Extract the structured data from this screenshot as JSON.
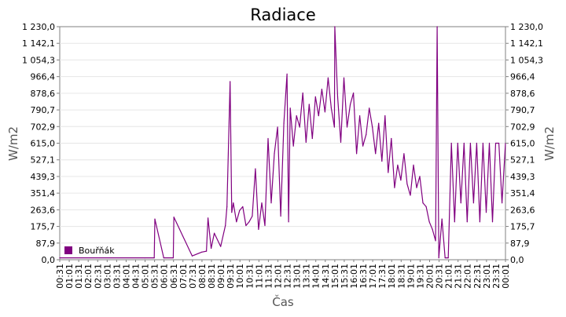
{
  "chart_data": {
    "type": "line",
    "title": "Radiace",
    "xlabel": "Čas",
    "ylabel": "W/m2",
    "ylabel_right": "W/m2",
    "ylim": [
      0,
      1230
    ],
    "yticks": [
      "0,0",
      "87,9",
      "175,7",
      "263,6",
      "351,4",
      "439,3",
      "527,1",
      "615,0",
      "702,9",
      "790,7",
      "878,6",
      "966,4",
      "1 054,3",
      "1 142,1",
      "1 230,0"
    ],
    "xticks": [
      "00:31",
      "01:01",
      "01:31",
      "02:01",
      "02:31",
      "03:01",
      "03:31",
      "04:01",
      "04:31",
      "05:01",
      "05:31",
      "06:01",
      "06:31",
      "07:01",
      "07:31",
      "08:01",
      "08:31",
      "09:01",
      "09:31",
      "10:01",
      "10:31",
      "11:01",
      "11:31",
      "12:01",
      "12:31",
      "13:01",
      "13:31",
      "14:01",
      "14:31",
      "15:01",
      "15:31",
      "16:01",
      "16:31",
      "17:01",
      "17:31",
      "18:01",
      "18:31",
      "19:01",
      "19:31",
      "20:01",
      "20:31",
      "21:01",
      "21:31",
      "22:01",
      "22:31",
      "23:01",
      "23:31",
      "00:01"
    ],
    "grid": true,
    "legend_position": "bottom-left",
    "series": [
      {
        "name": "Bouřňák",
        "color": "#800080",
        "x": [
          "00:31",
          "05:00",
          "05:30",
          "05:32",
          "06:00",
          "06:30",
          "06:32",
          "07:30",
          "08:00",
          "08:15",
          "08:20",
          "08:30",
          "08:40",
          "09:00",
          "09:15",
          "09:20",
          "09:30",
          "09:35",
          "09:40",
          "09:50",
          "10:00",
          "10:10",
          "10:20",
          "10:30",
          "10:40",
          "10:50",
          "11:00",
          "11:10",
          "11:20",
          "11:30",
          "11:40",
          "11:50",
          "12:00",
          "12:10",
          "12:20",
          "12:30",
          "12:35",
          "12:40",
          "12:50",
          "13:00",
          "13:10",
          "13:20",
          "13:30",
          "13:40",
          "13:50",
          "14:00",
          "14:10",
          "14:20",
          "14:30",
          "14:40",
          "14:50",
          "15:00",
          "15:01",
          "15:10",
          "15:20",
          "15:30",
          "15:40",
          "15:50",
          "16:00",
          "16:10",
          "16:20",
          "16:30",
          "16:40",
          "16:50",
          "17:00",
          "17:10",
          "17:20",
          "17:30",
          "17:40",
          "17:50",
          "18:00",
          "18:10",
          "18:20",
          "18:30",
          "18:40",
          "18:50",
          "19:00",
          "19:10",
          "19:20",
          "19:30",
          "19:40",
          "19:50",
          "20:00",
          "20:10",
          "20:20",
          "20:25",
          "20:30",
          "20:40",
          "20:50",
          "21:00",
          "21:10",
          "21:20",
          "21:30",
          "21:40",
          "21:50",
          "22:00",
          "22:10",
          "22:20",
          "22:30",
          "22:40",
          "22:50",
          "23:00",
          "23:10",
          "23:20",
          "23:30",
          "23:40",
          "23:50",
          "00:01"
        ],
        "y": [
          10,
          10,
          10,
          215,
          10,
          10,
          225,
          20,
          40,
          45,
          220,
          60,
          140,
          70,
          180,
          280,
          940,
          250,
          300,
          200,
          260,
          280,
          180,
          200,
          230,
          480,
          160,
          300,
          180,
          640,
          300,
          560,
          700,
          230,
          720,
          980,
          200,
          800,
          600,
          760,
          700,
          880,
          620,
          820,
          640,
          860,
          760,
          900,
          780,
          960,
          800,
          700,
          1230,
          860,
          620,
          960,
          700,
          820,
          880,
          560,
          760,
          600,
          660,
          800,
          700,
          560,
          720,
          520,
          760,
          460,
          640,
          380,
          500,
          420,
          560,
          400,
          340,
          500,
          380,
          440,
          300,
          280,
          200,
          160,
          100,
          1230,
          10,
          215,
          10,
          10,
          615,
          200,
          615,
          300,
          615,
          200,
          615,
          300,
          615,
          200,
          615,
          250,
          615,
          200,
          615,
          615,
          300,
          615
        ]
      }
    ]
  }
}
